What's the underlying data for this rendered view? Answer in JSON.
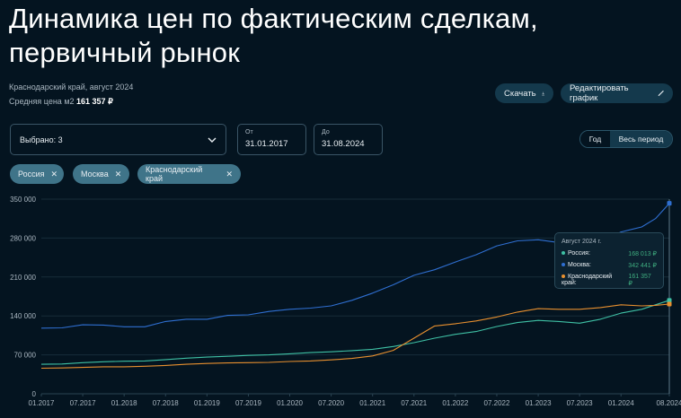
{
  "header": {
    "title": "Динамика цен по фактическим сделкам, первичный рынок",
    "region_period": "Краснодарский край, август 2024",
    "avg_price_label": "Средняя цена м2",
    "avg_price_value": "161 357 ₽"
  },
  "toolbar": {
    "download_label": "Скачать",
    "edit_label": "Редактировать график"
  },
  "filters": {
    "select_label": "Выбрано: 3",
    "from_label": "От",
    "from_value": "31.01.2017",
    "to_label": "До",
    "to_value": "31.08.2024",
    "period_options": [
      "Год",
      "Весь период"
    ],
    "period_selected": "Весь период",
    "chips": [
      "Россия",
      "Москва",
      "Краснодарский край"
    ]
  },
  "tooltip": {
    "title": "Август 2024 г.",
    "rows": [
      {
        "label": "Россия:",
        "value": "168 013 ₽",
        "color": "#3fc1a5"
      },
      {
        "label": "Москва:",
        "value": "342 441 ₽",
        "color": "#2f6fd1"
      },
      {
        "label": "Краснодарский край:",
        "value": "161 357 ₽",
        "color": "#e8902f"
      }
    ]
  },
  "colors": {
    "background": "#041420",
    "russia": "#3fc1a5",
    "moscow": "#2f6fd1",
    "krasnodar": "#e8902f",
    "tooltip_value": "#3fae80"
  },
  "chart_data": {
    "type": "line",
    "title": "Динамика цен по фактическим сделкам, первичный рынок",
    "xlabel": "",
    "ylabel": "",
    "ylim": [
      0,
      350000
    ],
    "yticks": [
      0,
      70000,
      140000,
      210000,
      280000,
      350000
    ],
    "ytick_labels": [
      "0",
      "70 000",
      "140 000",
      "210 000",
      "280 000",
      "350 000"
    ],
    "xtick_labels": [
      "01.2017",
      "07.2017",
      "01.2018",
      "07.2018",
      "01.2019",
      "07.2019",
      "01.2020",
      "07.2020",
      "01.2021",
      "07.2021",
      "01.2022",
      "07.2022",
      "01.2023",
      "07.2023",
      "01.2024",
      "08.2024"
    ],
    "xtick_months": [
      0,
      6,
      12,
      18,
      24,
      30,
      36,
      42,
      48,
      54,
      60,
      66,
      72,
      78,
      84,
      91
    ],
    "grid": true,
    "legend": "none (chips used as filter)",
    "x_months": [
      0,
      3,
      6,
      9,
      12,
      15,
      18,
      21,
      24,
      27,
      30,
      33,
      36,
      39,
      42,
      45,
      48,
      51,
      54,
      57,
      60,
      63,
      66,
      69,
      72,
      75,
      78,
      81,
      84,
      87,
      89,
      91
    ],
    "series": [
      {
        "name": "Россия",
        "color": "#3fc1a5",
        "values": [
          53000,
          53500,
          56000,
          57500,
          58500,
          59000,
          61500,
          64000,
          66000,
          67500,
          69000,
          70000,
          72000,
          74000,
          75500,
          77500,
          80000,
          85000,
          92000,
          100000,
          107000,
          112000,
          121000,
          128000,
          132000,
          130000,
          127000,
          134000,
          145000,
          152000,
          160000,
          168013
        ]
      },
      {
        "name": "Москва",
        "color": "#2f6fd1",
        "values": [
          118000,
          118500,
          124000,
          123500,
          120500,
          120500,
          130000,
          134000,
          134000,
          141000,
          142000,
          148000,
          152000,
          154000,
          158000,
          168000,
          181000,
          196000,
          213000,
          223000,
          237000,
          250000,
          266000,
          275000,
          277000,
          272000,
          270000,
          272000,
          291000,
          300000,
          315000,
          342441
        ]
      },
      {
        "name": "Краснодарский край",
        "color": "#e8902f",
        "values": [
          46000,
          46500,
          47500,
          48500,
          48500,
          49500,
          51000,
          53000,
          54500,
          55500,
          56000,
          56500,
          58000,
          59000,
          61000,
          63500,
          68000,
          78000,
          100000,
          122000,
          126000,
          131000,
          138000,
          147000,
          153000,
          152000,
          152000,
          155000,
          160000,
          158000,
          159000,
          161357
        ]
      }
    ],
    "highlight": {
      "x_label": "08.2024",
      "values": {
        "Россия": 168013,
        "Москва": 342441,
        "Краснодарский край": 161357
      }
    }
  }
}
